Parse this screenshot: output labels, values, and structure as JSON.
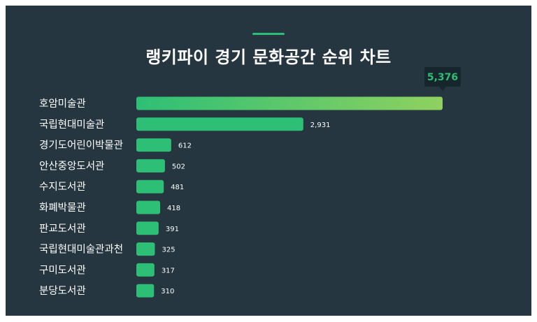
{
  "title": "랭키파이 경기 문화공간 순위 차트",
  "colors": {
    "background": "#263640",
    "accent": "#2dbf76",
    "bar": "#2dbf76",
    "top_bar_start": "#2dbf76",
    "top_bar_end": "#8fd15f",
    "tooltip_bg": "#17252d"
  },
  "tooltip": {
    "value": "5,376"
  },
  "chart_data": {
    "type": "bar",
    "orientation": "horizontal",
    "title": "랭키파이 경기 문화공간 순위 차트",
    "categories": [
      "호암미술관",
      "국립현대미술관",
      "경기도어린이박물관",
      "안산중앙도서관",
      "수지도서관",
      "화폐박물관",
      "판교도서관",
      "국립현대미술관과천",
      "구미도서관",
      "분당도서관"
    ],
    "values": [
      5376,
      2931,
      612,
      502,
      481,
      418,
      391,
      325,
      317,
      310
    ],
    "value_labels": [
      "",
      "2,931",
      "612",
      "502",
      "481",
      "418",
      "391",
      "325",
      "317",
      "310"
    ],
    "xlim": [
      0,
      5376
    ],
    "grid": false,
    "legend": "none"
  }
}
